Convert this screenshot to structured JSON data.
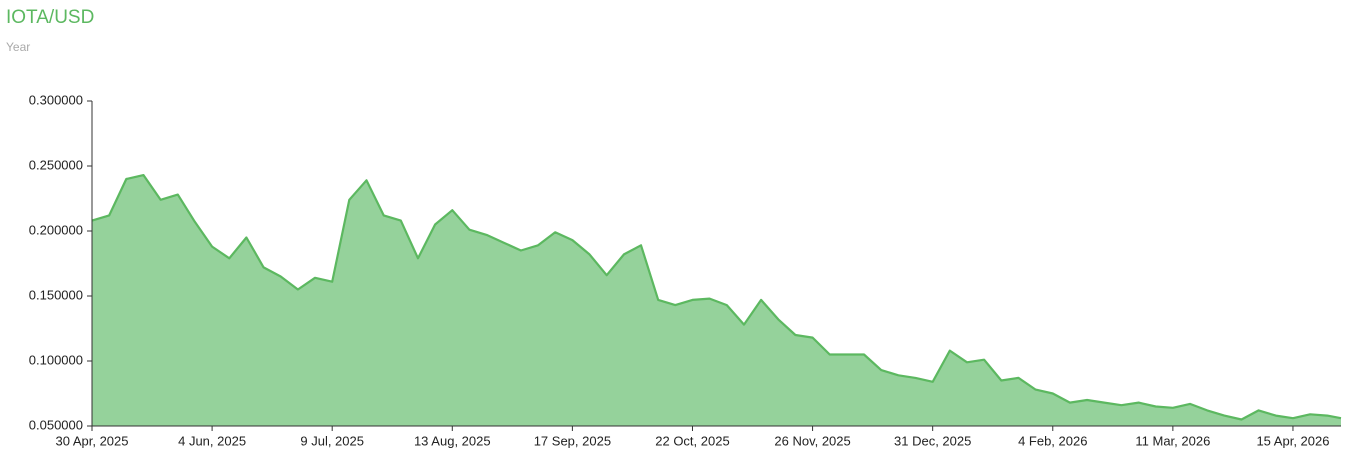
{
  "chart_data": {
    "type": "area",
    "title": "IOTA/USD",
    "subtitle": "Year",
    "x": [
      "2025-04-30",
      "2025-05-05",
      "2025-05-10",
      "2025-05-15",
      "2025-05-20",
      "2025-05-25",
      "2025-05-30",
      "2025-06-04",
      "2025-06-09",
      "2025-06-14",
      "2025-06-19",
      "2025-06-24",
      "2025-06-29",
      "2025-07-04",
      "2025-07-09",
      "2025-07-14",
      "2025-07-19",
      "2025-07-24",
      "2025-07-29",
      "2025-08-03",
      "2025-08-08",
      "2025-08-13",
      "2025-08-18",
      "2025-08-23",
      "2025-08-28",
      "2025-09-02",
      "2025-09-07",
      "2025-09-12",
      "2025-09-17",
      "2025-09-22",
      "2025-09-27",
      "2025-10-02",
      "2025-10-07",
      "2025-10-12",
      "2025-10-17",
      "2025-10-22",
      "2025-10-27",
      "2025-11-01",
      "2025-11-06",
      "2025-11-11",
      "2025-11-16",
      "2025-11-21",
      "2025-11-26",
      "2025-12-01",
      "2025-12-06",
      "2025-12-11",
      "2025-12-16",
      "2025-12-21",
      "2025-12-26",
      "2025-12-31",
      "2026-01-05",
      "2026-01-10",
      "2026-01-15",
      "2026-01-20",
      "2026-01-25",
      "2026-01-30",
      "2026-02-04",
      "2026-02-09",
      "2026-02-14",
      "2026-02-19",
      "2026-02-24",
      "2026-03-01",
      "2026-03-06",
      "2026-03-11",
      "2026-03-16",
      "2026-03-21",
      "2026-03-26",
      "2026-03-31",
      "2026-04-05",
      "2026-04-10",
      "2026-04-15",
      "2026-04-20",
      "2026-04-25",
      "2026-04-29"
    ],
    "values": [
      0.208,
      0.212,
      0.24,
      0.243,
      0.224,
      0.228,
      0.207,
      0.188,
      0.179,
      0.195,
      0.172,
      0.165,
      0.155,
      0.164,
      0.161,
      0.224,
      0.239,
      0.212,
      0.208,
      0.179,
      0.205,
      0.216,
      0.201,
      0.197,
      0.191,
      0.185,
      0.189,
      0.199,
      0.193,
      0.182,
      0.166,
      0.182,
      0.189,
      0.147,
      0.143,
      0.147,
      0.148,
      0.143,
      0.128,
      0.147,
      0.132,
      0.12,
      0.118,
      0.105,
      0.105,
      0.105,
      0.093,
      0.089,
      0.087,
      0.084,
      0.108,
      0.099,
      0.101,
      0.085,
      0.087,
      0.078,
      0.075,
      0.068,
      0.07,
      0.068,
      0.066,
      0.068,
      0.065,
      0.064,
      0.067,
      0.062,
      0.058,
      0.055,
      0.062,
      0.058,
      0.056,
      0.059,
      0.058,
      0.056
    ],
    "color": "#5cb860",
    "area_color": "#95d29b",
    "xlim": [
      "2025-04-30",
      "2026-04-29"
    ],
    "xticks": [
      {
        "value": "2025-04-30",
        "label": "30 Apr, 2025"
      },
      {
        "value": "2025-06-04",
        "label": "4 Jun, 2025"
      },
      {
        "value": "2025-07-09",
        "label": "9 Jul, 2025"
      },
      {
        "value": "2025-08-13",
        "label": "13 Aug, 2025"
      },
      {
        "value": "2025-09-17",
        "label": "17 Sep, 2025"
      },
      {
        "value": "2025-10-22",
        "label": "22 Oct, 2025"
      },
      {
        "value": "2025-11-26",
        "label": "26 Nov, 2025"
      },
      {
        "value": "2025-12-31",
        "label": "31 Dec, 2025"
      },
      {
        "value": "2026-02-04",
        "label": "4 Feb, 2026"
      },
      {
        "value": "2026-03-11",
        "label": "11 Mar, 2026"
      },
      {
        "value": "2026-04-15",
        "label": "15 Apr, 2026"
      }
    ],
    "ylim": [
      0.05,
      0.3
    ],
    "yticks": [
      {
        "value": 0.05,
        "label": "0.050000"
      },
      {
        "value": 0.1,
        "label": "0.100000"
      },
      {
        "value": 0.15,
        "label": "0.150000"
      },
      {
        "value": 0.2,
        "label": "0.200000"
      },
      {
        "value": 0.25,
        "label": "0.250000"
      },
      {
        "value": 0.3,
        "label": "0.300000"
      }
    ]
  }
}
